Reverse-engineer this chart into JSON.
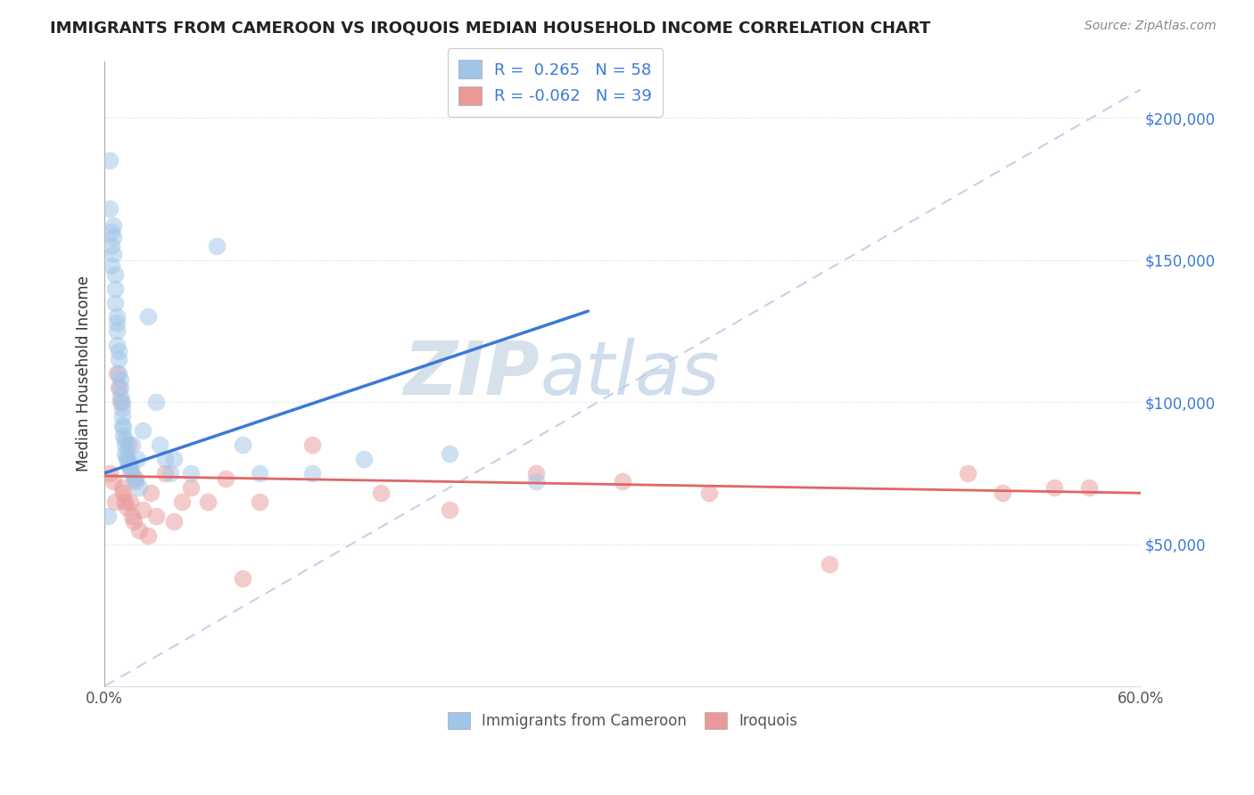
{
  "title": "IMMIGRANTS FROM CAMEROON VS IROQUOIS MEDIAN HOUSEHOLD INCOME CORRELATION CHART",
  "source": "Source: ZipAtlas.com",
  "ylabel": "Median Household Income",
  "xlim": [
    0,
    0.6
  ],
  "ylim": [
    0,
    220000
  ],
  "yticks": [
    0,
    50000,
    100000,
    150000,
    200000
  ],
  "ytick_labels": [
    "",
    "$50,000",
    "$100,000",
    "$150,000",
    "$200,000"
  ],
  "xticks": [
    0.0,
    0.1,
    0.2,
    0.3,
    0.4,
    0.5,
    0.6
  ],
  "xtick_labels": [
    "0.0%",
    "",
    "",
    "",
    "",
    "",
    "60.0%"
  ],
  "r_blue": 0.265,
  "n_blue": 58,
  "r_pink": -0.062,
  "n_pink": 39,
  "blue_color": "#9fc5e8",
  "pink_color": "#ea9999",
  "blue_line_color": "#3c78d8",
  "pink_line_color": "#e06666",
  "dashed_line_color": "#b8cfe8",
  "watermark_zip": "ZIP",
  "watermark_atlas": "atlas",
  "legend_label_blue": "Immigrants from Cameroon",
  "legend_label_pink": "Iroquois",
  "blue_scatter_x": [
    0.002,
    0.003,
    0.003,
    0.004,
    0.004,
    0.004,
    0.005,
    0.005,
    0.005,
    0.006,
    0.006,
    0.006,
    0.007,
    0.007,
    0.007,
    0.007,
    0.008,
    0.008,
    0.008,
    0.009,
    0.009,
    0.009,
    0.01,
    0.01,
    0.01,
    0.01,
    0.011,
    0.011,
    0.012,
    0.012,
    0.012,
    0.013,
    0.013,
    0.014,
    0.014,
    0.015,
    0.015,
    0.016,
    0.016,
    0.017,
    0.018,
    0.019,
    0.02,
    0.022,
    0.025,
    0.03,
    0.032,
    0.035,
    0.038,
    0.04,
    0.05,
    0.065,
    0.08,
    0.09,
    0.12,
    0.15,
    0.2,
    0.25
  ],
  "blue_scatter_y": [
    60000,
    185000,
    168000,
    160000,
    155000,
    148000,
    162000,
    158000,
    152000,
    145000,
    140000,
    135000,
    130000,
    128000,
    125000,
    120000,
    118000,
    115000,
    110000,
    108000,
    105000,
    102000,
    100000,
    98000,
    95000,
    92000,
    91000,
    88000,
    87000,
    85000,
    82000,
    81000,
    80000,
    79000,
    78000,
    77000,
    76000,
    85000,
    75000,
    73000,
    72000,
    80000,
    70000,
    90000,
    130000,
    100000,
    85000,
    80000,
    75000,
    80000,
    75000,
    155000,
    85000,
    75000,
    75000,
    80000,
    82000,
    72000
  ],
  "pink_scatter_x": [
    0.003,
    0.005,
    0.006,
    0.007,
    0.008,
    0.009,
    0.01,
    0.011,
    0.012,
    0.013,
    0.014,
    0.015,
    0.016,
    0.017,
    0.018,
    0.02,
    0.022,
    0.025,
    0.027,
    0.03,
    0.035,
    0.04,
    0.045,
    0.05,
    0.06,
    0.07,
    0.08,
    0.09,
    0.12,
    0.16,
    0.2,
    0.25,
    0.3,
    0.35,
    0.42,
    0.5,
    0.52,
    0.55,
    0.57
  ],
  "pink_scatter_y": [
    75000,
    72000,
    65000,
    110000,
    105000,
    100000,
    70000,
    68000,
    65000,
    63000,
    85000,
    65000,
    60000,
    58000,
    73000,
    55000,
    62000,
    53000,
    68000,
    60000,
    75000,
    58000,
    65000,
    70000,
    65000,
    73000,
    38000,
    65000,
    85000,
    68000,
    62000,
    75000,
    72000,
    68000,
    43000,
    75000,
    68000,
    70000,
    70000
  ],
  "blue_line_x": [
    0.0,
    0.28
  ],
  "blue_line_y": [
    75000,
    132000
  ],
  "pink_line_x": [
    0.0,
    0.6
  ],
  "pink_line_y": [
    74000,
    68000
  ],
  "dash_line_x": [
    0.0,
    0.6
  ],
  "dash_line_y": [
    0,
    210000
  ]
}
